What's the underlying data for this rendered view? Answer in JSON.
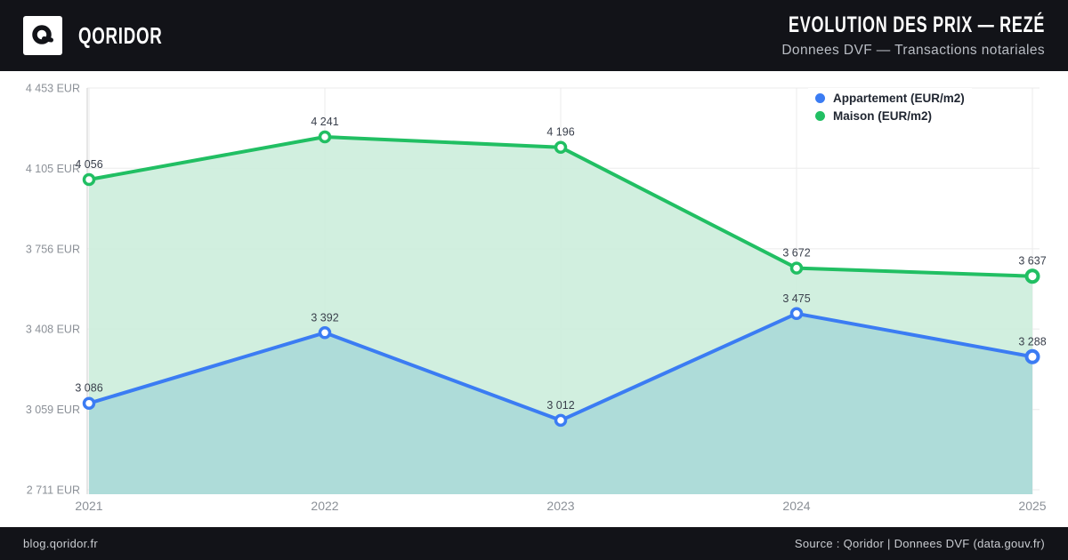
{
  "header": {
    "brand": "QORIDOR",
    "title": "EVOLUTION DES PRIX — REZÉ",
    "subtitle": "Donnees DVF — Transactions notariales"
  },
  "legend": {
    "items": [
      {
        "label": "Appartement (EUR/m2)",
        "color": "#3b7cf3"
      },
      {
        "label": "Maison (EUR/m2)",
        "color": "#21bf63"
      }
    ]
  },
  "chart_data": {
    "type": "line",
    "title": "EVOLUTION DES PRIX — REZÉ",
    "x": [
      2021,
      2022,
      2023,
      2024,
      2025
    ],
    "x_tick_labels": [
      "2021",
      "2022",
      "2023",
      "2024",
      "2025"
    ],
    "ylim": [
      2711,
      4453
    ],
    "grid": true,
    "legend_position": "top-right",
    "y_ticks": [
      {
        "value": 4453,
        "label": "4 453 EUR"
      },
      {
        "value": 4105,
        "label": "4 105 EUR"
      },
      {
        "value": 3756,
        "label": "3 756 EUR"
      },
      {
        "value": 3408,
        "label": "3 408 EUR"
      },
      {
        "value": 3059,
        "label": "3 059 EUR"
      },
      {
        "value": 2711,
        "label": "2 711 EUR"
      }
    ],
    "series": [
      {
        "name": "Appartement (EUR/m2)",
        "color": "#3b7cf3",
        "area_color": "#abdad8",
        "values": [
          3086,
          3392,
          3012,
          3475,
          3288
        ],
        "point_labels": [
          "3 086",
          "3 392",
          "3 012",
          "3 475",
          "3 288"
        ]
      },
      {
        "name": "Maison (EUR/m2)",
        "color": "#21bf63",
        "area_color": "#cdeedd",
        "values": [
          4056,
          4241,
          4196,
          3672,
          3637
        ],
        "point_labels": [
          "4 056",
          "4 241",
          "4 196",
          "3 672",
          "3 637"
        ]
      }
    ]
  },
  "footer": {
    "left": "blog.qoridor.fr",
    "right": "Source : Qoridor | Donnees DVF (data.gouv.fr)"
  }
}
